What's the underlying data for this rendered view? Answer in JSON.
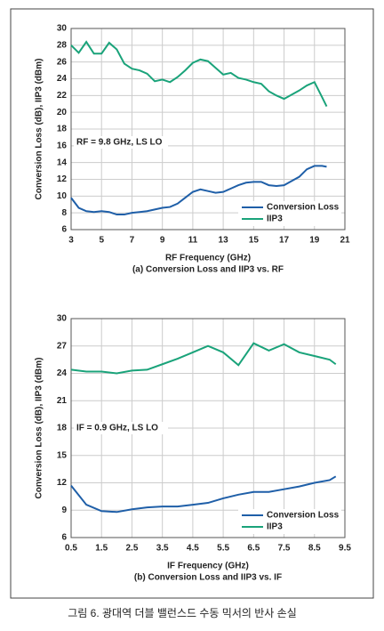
{
  "chart_data": [
    {
      "type": "line",
      "xlabel": "RF Frequency (GHz)",
      "ylabel": "Conversion Loss (dB), IIP3 (dBm)",
      "subtitle": "(a) Conversion Loss and IIP3 vs. RF",
      "annotation": "RF = 9.8 GHz, LS LO",
      "x": [
        3,
        3.5,
        4,
        4.5,
        5,
        5.5,
        6,
        6.5,
        7,
        7.5,
        8,
        8.5,
        9,
        9.5,
        10,
        10.5,
        11,
        11.5,
        12,
        12.5,
        13,
        13.5,
        14,
        14.5,
        15,
        15.5,
        16,
        16.5,
        17,
        17.5,
        18,
        18.5,
        19,
        19.5,
        19.8
      ],
      "series": [
        {
          "name": "Conversion Loss",
          "color": "#1f5fa8",
          "values": [
            9.8,
            8.6,
            8.2,
            8.1,
            8.2,
            8.1,
            7.8,
            7.8,
            8.0,
            8.1,
            8.2,
            8.4,
            8.6,
            8.7,
            9.1,
            9.8,
            10.5,
            10.8,
            10.6,
            10.4,
            10.5,
            10.9,
            11.3,
            11.6,
            11.7,
            11.7,
            11.3,
            11.2,
            11.3,
            11.8,
            12.3,
            13.2,
            13.6,
            13.6,
            13.5
          ]
        },
        {
          "name": "IIP3",
          "color": "#1aa37a",
          "values": [
            28.0,
            27.1,
            28.4,
            27.0,
            27.0,
            28.3,
            27.5,
            25.8,
            25.2,
            25.0,
            24.6,
            23.7,
            23.9,
            23.6,
            24.2,
            25.0,
            25.9,
            26.3,
            26.1,
            25.3,
            24.5,
            24.7,
            24.1,
            23.9,
            23.6,
            23.4,
            22.5,
            22.0,
            21.6,
            22.1,
            22.6,
            23.2,
            23.6,
            21.8,
            20.7
          ]
        }
      ],
      "xlim": [
        3,
        21
      ],
      "xticks": [
        3,
        5,
        7,
        9,
        11,
        13,
        15,
        17,
        19,
        21
      ],
      "ylim": [
        6,
        30
      ],
      "yticks": [
        6,
        8,
        10,
        12,
        14,
        16,
        18,
        20,
        22,
        24,
        26,
        28,
        30
      ],
      "grid": true,
      "legend": "lower right"
    },
    {
      "type": "line",
      "xlabel": "IF Frequency (GHz)",
      "ylabel": "Conversion Loss (dB), IIP3 (dBm)",
      "subtitle": "(b) Conversion Loss and IIP3 vs. IF",
      "annotation": "IF = 0.9 GHz, LS LO",
      "x": [
        0.5,
        1,
        1.5,
        2,
        2.5,
        3,
        3.5,
        4,
        4.5,
        5,
        5.5,
        6,
        6.5,
        7,
        7.5,
        8,
        8.5,
        9,
        9.2
      ],
      "series": [
        {
          "name": "Conversion Loss",
          "color": "#1f5fa8",
          "values": [
            11.7,
            9.6,
            8.9,
            8.8,
            9.1,
            9.3,
            9.4,
            9.4,
            9.6,
            9.8,
            10.3,
            10.7,
            11.0,
            11.0,
            11.3,
            11.6,
            12.0,
            12.3,
            12.7
          ]
        },
        {
          "name": "IIP3",
          "color": "#1aa37a",
          "values": [
            24.4,
            24.2,
            24.2,
            24.0,
            24.3,
            24.4,
            25.0,
            25.6,
            26.3,
            27.0,
            26.3,
            24.9,
            27.3,
            26.5,
            27.2,
            26.3,
            25.9,
            25.5,
            25.0
          ]
        }
      ],
      "xlim": [
        0.5,
        9.5
      ],
      "xticks": [
        0.5,
        1.5,
        2.5,
        3.5,
        4.5,
        5.5,
        6.5,
        7.5,
        8.5,
        9.5
      ],
      "ylim": [
        6,
        30
      ],
      "yticks": [
        6,
        9,
        12,
        15,
        18,
        21,
        24,
        27,
        30
      ],
      "grid": true,
      "legend": "lower right"
    }
  ],
  "caption": "그림 6. 광대역 더블 밸런스드 수동 믹서의 반사 손실"
}
